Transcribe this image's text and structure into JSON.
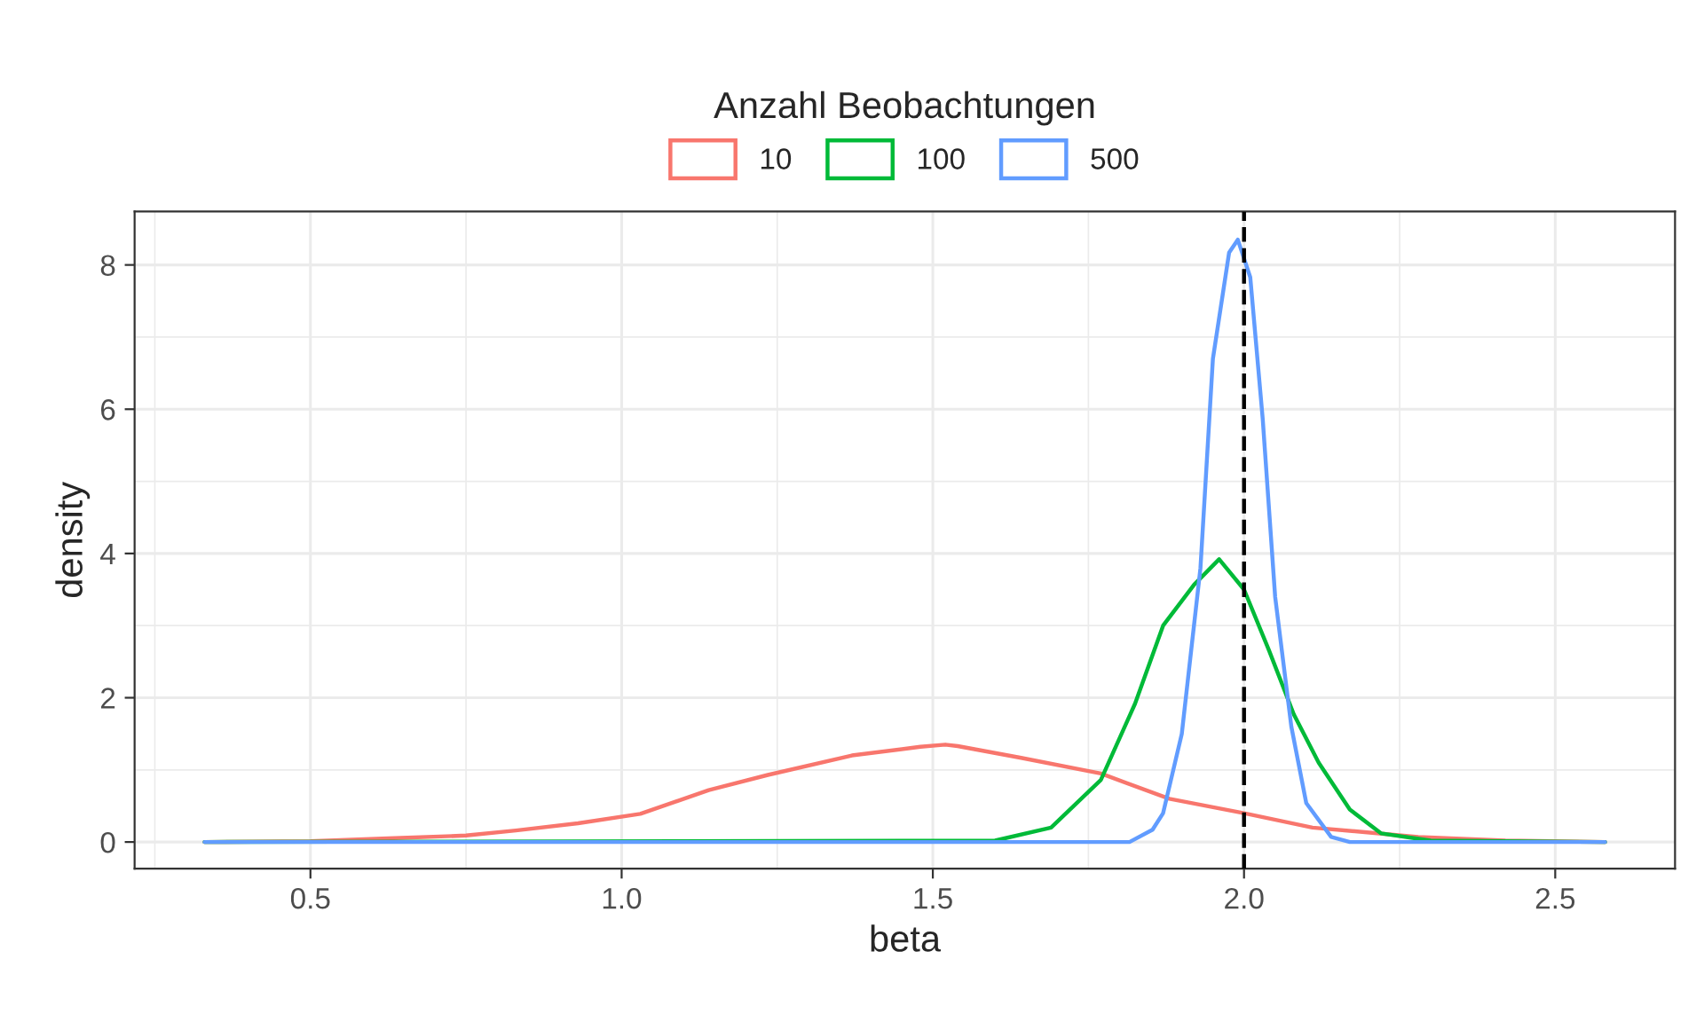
{
  "chart_data": {
    "type": "line",
    "xlabel": "beta",
    "ylabel": "density",
    "legend_title": "Anzahl Beobachtungen",
    "legend": "top",
    "grid": true,
    "marker": "none",
    "line_style": "solid",
    "xlim": [
      0.2175,
      2.6925
    ],
    "ylim": [
      -0.37,
      8.74
    ],
    "xticks": [
      {
        "value": 0.5,
        "label": "0.5"
      },
      {
        "value": 1.0,
        "label": "1.0"
      },
      {
        "value": 1.5,
        "label": "1.5"
      },
      {
        "value": 2.0,
        "label": "2.0"
      },
      {
        "value": 2.5,
        "label": "2.5"
      }
    ],
    "yticks": [
      0,
      2,
      4,
      6,
      8
    ],
    "ref_lines": [
      {
        "axis": "x",
        "value": 2.0,
        "color": "#000000",
        "line_style": "dashed"
      }
    ],
    "series": [
      {
        "name": "10",
        "color": "#f8766d",
        "x": [
          0.33,
          0.5,
          0.625,
          0.75,
          0.83,
          0.93,
          1.03,
          1.14,
          1.235,
          1.37,
          1.48,
          1.52,
          1.54,
          1.64,
          1.77,
          1.88,
          2.0,
          2.11,
          2.28,
          2.42,
          2.58
        ],
        "values": [
          0,
          0.01,
          0.05,
          0.09,
          0.16,
          0.26,
          0.39,
          0.72,
          0.93,
          1.2,
          1.32,
          1.35,
          1.33,
          1.17,
          0.95,
          0.6,
          0.4,
          0.2,
          0.07,
          0.02,
          0
        ]
      },
      {
        "name": "100",
        "color": "#00ba38",
        "x": [
          0.33,
          1.6,
          1.69,
          1.77,
          1.825,
          1.87,
          1.92,
          1.96,
          2.0,
          2.04,
          2.08,
          2.12,
          2.17,
          2.22,
          2.3,
          2.58
        ],
        "values": [
          0,
          0.02,
          0.2,
          0.86,
          1.92,
          3.0,
          3.57,
          3.92,
          3.5,
          2.66,
          1.77,
          1.1,
          0.45,
          0.12,
          0.02,
          0
        ]
      },
      {
        "name": "500",
        "color": "#619cff",
        "x": [
          0.33,
          1.816,
          1.853,
          1.87,
          1.9,
          1.93,
          1.95,
          1.976,
          1.99,
          2.01,
          2.03,
          2.05,
          2.076,
          2.1,
          2.14,
          2.17,
          2.58
        ],
        "values": [
          0,
          0,
          0.17,
          0.4,
          1.5,
          3.8,
          6.7,
          8.17,
          8.35,
          7.83,
          5.87,
          3.4,
          1.6,
          0.54,
          0.07,
          0,
          0
        ]
      }
    ]
  }
}
